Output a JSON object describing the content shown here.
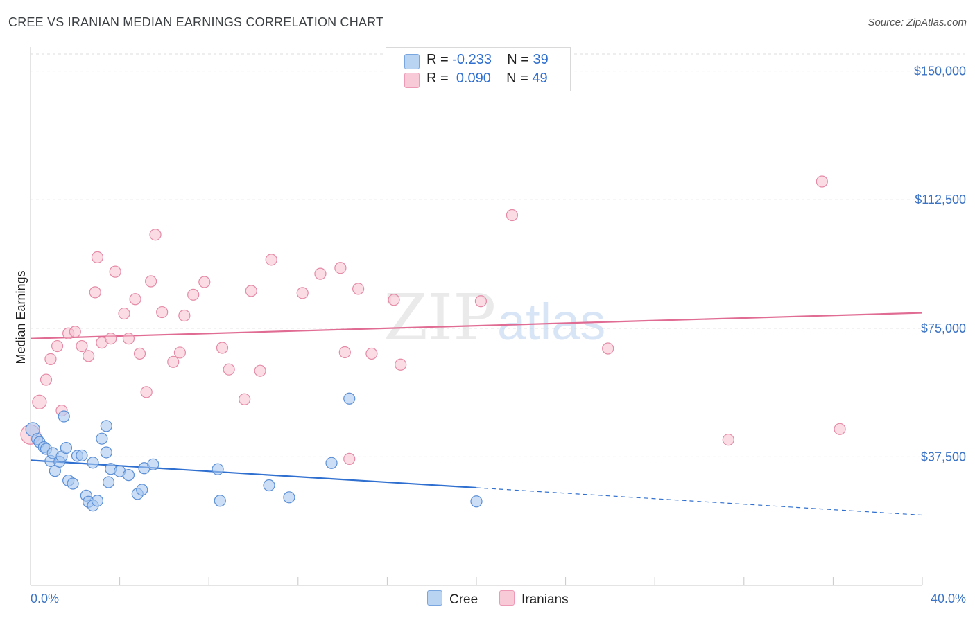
{
  "header": {
    "title": "CREE VS IRANIAN MEDIAN EARNINGS CORRELATION CHART",
    "source": "Source: ZipAtlas.com"
  },
  "legend": {
    "rows": [
      {
        "r_label": "R =",
        "r_value": "-0.233",
        "n_label": "N =",
        "n_value": "39"
      },
      {
        "r_label": "R =",
        "r_value": "0.090",
        "n_label": "N =",
        "n_value": "49"
      }
    ]
  },
  "watermark": {
    "zip": "ZIP",
    "atlas": "atlas"
  },
  "colors": {
    "cree_fill": "#a8c8f0",
    "cree_stroke": "#5b8fd6",
    "cree_line": "#2f6fd0",
    "iran_fill": "#f7bfd0",
    "iran_stroke": "#e58aa6",
    "iran_line": "#e06b93",
    "axis_text": "#3b73c4",
    "grid": "#dddddd"
  },
  "chart_data": {
    "type": "scatter",
    "title": "CREE VS IRANIAN MEDIAN EARNINGS CORRELATION CHART",
    "xlabel": "",
    "ylabel": "Median Earnings",
    "xlim": [
      0,
      40
    ],
    "ylim": [
      0,
      157000
    ],
    "x_tick_labels": [
      "0.0%",
      "40.0%"
    ],
    "y_ticks": [
      37500,
      75000,
      112500,
      150000
    ],
    "y_tick_labels": [
      "$37,500",
      "$75,000",
      "$112,500",
      "$150,000"
    ],
    "series": [
      {
        "name": "Cree",
        "r": -0.233,
        "n": 39,
        "trend": {
          "x0": 0,
          "y0": 36500,
          "x1": 20,
          "y1": 28500,
          "dash_to_x": 40,
          "dash_to_y": 20500
        },
        "points": [
          [
            0.1,
            45500
          ],
          [
            0.3,
            42700
          ],
          [
            0.4,
            41800
          ],
          [
            0.6,
            40300
          ],
          [
            0.7,
            39800
          ],
          [
            0.9,
            36300
          ],
          [
            1.0,
            38600
          ],
          [
            1.1,
            33400
          ],
          [
            1.3,
            36100
          ],
          [
            1.4,
            37600
          ],
          [
            1.6,
            40100
          ],
          [
            1.7,
            30600
          ],
          [
            1.9,
            29700
          ],
          [
            2.1,
            37800
          ],
          [
            2.3,
            37900
          ],
          [
            2.5,
            26200
          ],
          [
            2.6,
            24400
          ],
          [
            2.8,
            35800
          ],
          [
            2.8,
            23300
          ],
          [
            3.0,
            24700
          ],
          [
            3.2,
            42800
          ],
          [
            3.4,
            38800
          ],
          [
            3.4,
            46500
          ],
          [
            3.5,
            30100
          ],
          [
            3.6,
            34000
          ],
          [
            4.0,
            33300
          ],
          [
            4.4,
            32200
          ],
          [
            4.8,
            26700
          ],
          [
            5.0,
            27900
          ],
          [
            5.1,
            34200
          ],
          [
            5.5,
            35300
          ],
          [
            8.4,
            33900
          ],
          [
            8.5,
            24700
          ],
          [
            10.7,
            29200
          ],
          [
            11.6,
            25700
          ],
          [
            13.5,
            35700
          ],
          [
            14.3,
            54500
          ],
          [
            20.0,
            24500
          ],
          [
            1.5,
            49300
          ]
        ]
      },
      {
        "name": "Iranians",
        "r": 0.09,
        "n": 49,
        "trend": {
          "x0": 0,
          "y0": 72000,
          "x1": 40,
          "y1": 79500
        },
        "points": [
          [
            0.0,
            44000
          ],
          [
            0.4,
            53500
          ],
          [
            0.7,
            60000
          ],
          [
            0.9,
            66000
          ],
          [
            1.2,
            69800
          ],
          [
            1.4,
            51000
          ],
          [
            1.7,
            73500
          ],
          [
            2.0,
            74000
          ],
          [
            2.3,
            69800
          ],
          [
            2.6,
            66900
          ],
          [
            2.9,
            85500
          ],
          [
            3.0,
            95700
          ],
          [
            3.2,
            70800
          ],
          [
            3.6,
            72000
          ],
          [
            3.8,
            91500
          ],
          [
            4.2,
            79300
          ],
          [
            4.4,
            72000
          ],
          [
            4.7,
            83500
          ],
          [
            4.9,
            67600
          ],
          [
            5.2,
            56400
          ],
          [
            5.4,
            88700
          ],
          [
            5.6,
            102300
          ],
          [
            5.9,
            79700
          ],
          [
            6.4,
            65200
          ],
          [
            6.7,
            67900
          ],
          [
            6.9,
            78700
          ],
          [
            7.3,
            84800
          ],
          [
            7.8,
            88500
          ],
          [
            8.6,
            69300
          ],
          [
            8.9,
            63000
          ],
          [
            9.6,
            54300
          ],
          [
            9.9,
            85900
          ],
          [
            10.3,
            62600
          ],
          [
            10.8,
            95000
          ],
          [
            12.2,
            85300
          ],
          [
            13.0,
            90900
          ],
          [
            13.9,
            92600
          ],
          [
            14.1,
            68000
          ],
          [
            14.3,
            36900
          ],
          [
            14.7,
            86500
          ],
          [
            15.3,
            67600
          ],
          [
            16.3,
            83300
          ],
          [
            16.6,
            64400
          ],
          [
            20.2,
            82900
          ],
          [
            21.6,
            108000
          ],
          [
            25.9,
            69100
          ],
          [
            31.3,
            42500
          ],
          [
            35.5,
            117800
          ],
          [
            36.3,
            45600
          ]
        ]
      }
    ]
  },
  "bottom_legend": {
    "items": [
      {
        "label": "Cree"
      },
      {
        "label": "Iranians"
      }
    ]
  }
}
